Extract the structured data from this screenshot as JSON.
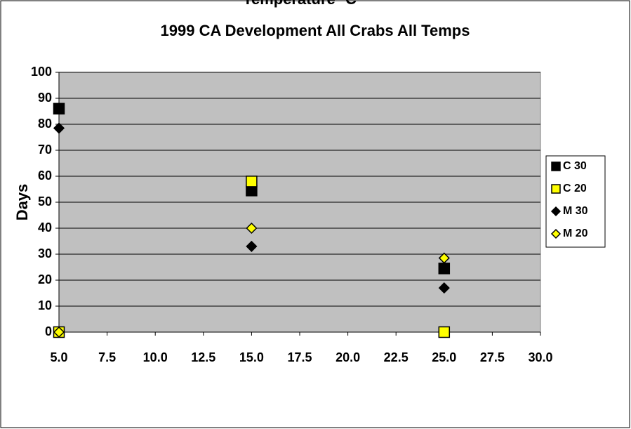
{
  "chart_data": {
    "type": "scatter",
    "title": "1999 CA Development All Crabs All Temps",
    "xlabel": "Temperature ºC",
    "ylabel": "Days",
    "x": [
      5,
      15,
      25
    ],
    "series": [
      {
        "name": "C 30",
        "color": "#000000",
        "marker": "square",
        "values": [
          86,
          54.5,
          24.5
        ]
      },
      {
        "name": "C 20",
        "color": "#ffff00",
        "marker": "square",
        "values": [
          0,
          58,
          0
        ]
      },
      {
        "name": "M 30",
        "color": "#000000",
        "marker": "diamond",
        "values": [
          78.5,
          33,
          17
        ]
      },
      {
        "name": "M 20",
        "color": "#ffff00",
        "marker": "diamond",
        "values": [
          0,
          40,
          28.5
        ]
      }
    ],
    "xlim": [
      5,
      30
    ],
    "xticks": [
      {
        "value": 5,
        "label": "5.0"
      },
      {
        "value": 7.5,
        "label": "7.5"
      },
      {
        "value": 10,
        "label": "10.0"
      },
      {
        "value": 12.5,
        "label": "12.5"
      },
      {
        "value": 15,
        "label": "15.0"
      },
      {
        "value": 17.5,
        "label": "17.5"
      },
      {
        "value": 20,
        "label": "20.0"
      },
      {
        "value": 22.5,
        "label": "22.5"
      },
      {
        "value": 25,
        "label": "25.0"
      },
      {
        "value": 27.5,
        "label": "27.5"
      },
      {
        "value": 30,
        "label": "30.0"
      }
    ],
    "ylim": [
      0,
      100
    ],
    "yticks": [
      0,
      10,
      20,
      30,
      40,
      50,
      60,
      70,
      80,
      90,
      100
    ],
    "grid": true,
    "legend": "right",
    "background": "#c0c0c0"
  }
}
